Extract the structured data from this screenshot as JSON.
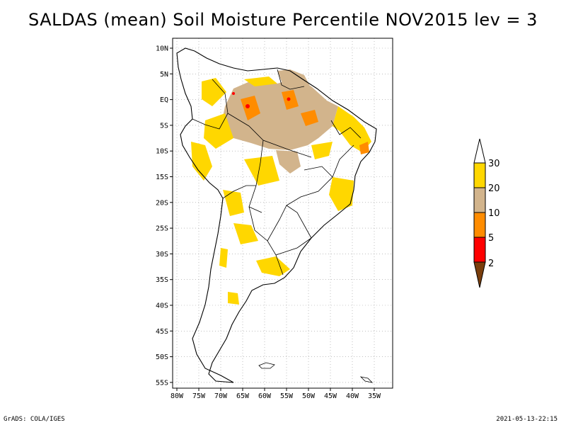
{
  "title": "SALDAS (mean) Soil Moisture Percentile NOV2015 lev = 3",
  "lat_labels": [
    "10N",
    "5N",
    "EQ",
    "5S",
    "10S",
    "15S",
    "20S",
    "25S",
    "30S",
    "35S",
    "40S",
    "45S",
    "50S",
    "55S"
  ],
  "lon_labels": [
    "80W",
    "75W",
    "70W",
    "65W",
    "60W",
    "55W",
    "50W",
    "45W",
    "40W",
    "35W"
  ],
  "colorbar": {
    "levels": [
      "2",
      "5",
      "10",
      "20",
      "30"
    ],
    "colors": {
      "below_2": "#7a3e0c",
      "2_5": "#ff0000",
      "5_10": "#ff8c00",
      "10_20": "#d2b48c",
      "20_30": "#ffd700",
      "above_30": "#ffffff"
    }
  },
  "footer_left": "GrADS: COLA/IGES",
  "footer_right": "2021-05-13-22:15"
}
